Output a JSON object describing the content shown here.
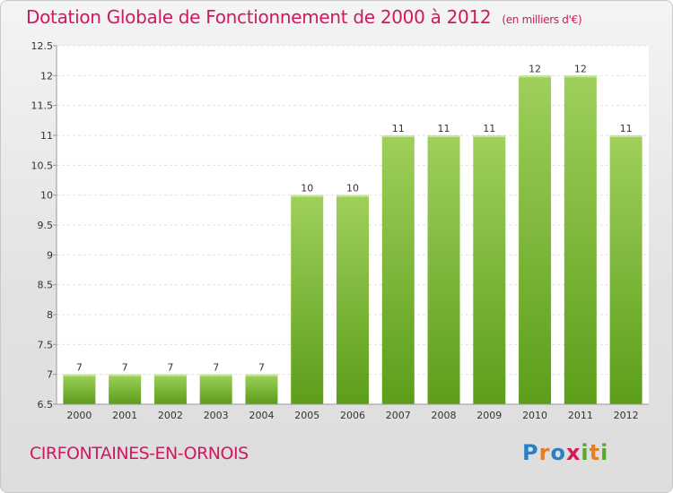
{
  "title_main": "Dotation Globale de Fonctionnement de 2000 à 2012",
  "title_unit": "(en milliers d'€)",
  "place_name": "CIRFONTAINES-EN-ORNOIS",
  "logo": {
    "p": "P",
    "r": "r",
    "o": "o",
    "x": "x",
    "i1": "i",
    "t": "t",
    "i2": "i"
  },
  "colors": {
    "title": "#d1185f",
    "bar_top": "#9fd05c",
    "bar_bottom": "#5c9e1a"
  },
  "chart_data": {
    "type": "bar",
    "categories": [
      "2000",
      "2001",
      "2002",
      "2003",
      "2004",
      "2005",
      "2006",
      "2007",
      "2008",
      "2009",
      "2010",
      "2011",
      "2012"
    ],
    "values": [
      7,
      7,
      7,
      7,
      7,
      10,
      10,
      11,
      11,
      11,
      12,
      12,
      11
    ],
    "value_labels": [
      "7",
      "7",
      "7",
      "7",
      "7",
      "10",
      "10",
      "11",
      "11",
      "11",
      "12",
      "12",
      "11"
    ],
    "ylim": [
      6.5,
      12.5
    ],
    "yticks": [
      6.5,
      7,
      7.5,
      8,
      8.5,
      9,
      9.5,
      10,
      10.5,
      11,
      11.5,
      12,
      12.5
    ],
    "ytick_labels": [
      "6.5",
      "7",
      "7.5",
      "8",
      "8.5",
      "9",
      "9.5",
      "10",
      "10.5",
      "11",
      "11.5",
      "12",
      "12.5"
    ],
    "grid": true,
    "xlabel": "",
    "ylabel": ""
  }
}
